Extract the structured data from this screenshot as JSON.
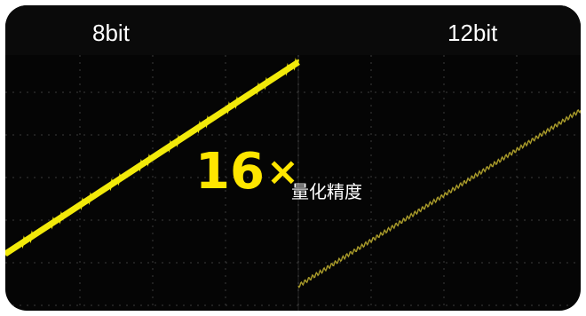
{
  "left_panel": {
    "label": "8bit",
    "trace_color": "#F2EA0A"
  },
  "right_panel": {
    "label": "12bit",
    "trace_color": "#A89A2A"
  },
  "headline": {
    "multiplier": "16",
    "times_symbol": "×",
    "caption": "量化精度",
    "color": "#FFE600"
  },
  "grid": {
    "color": "#3a3a3a"
  }
}
